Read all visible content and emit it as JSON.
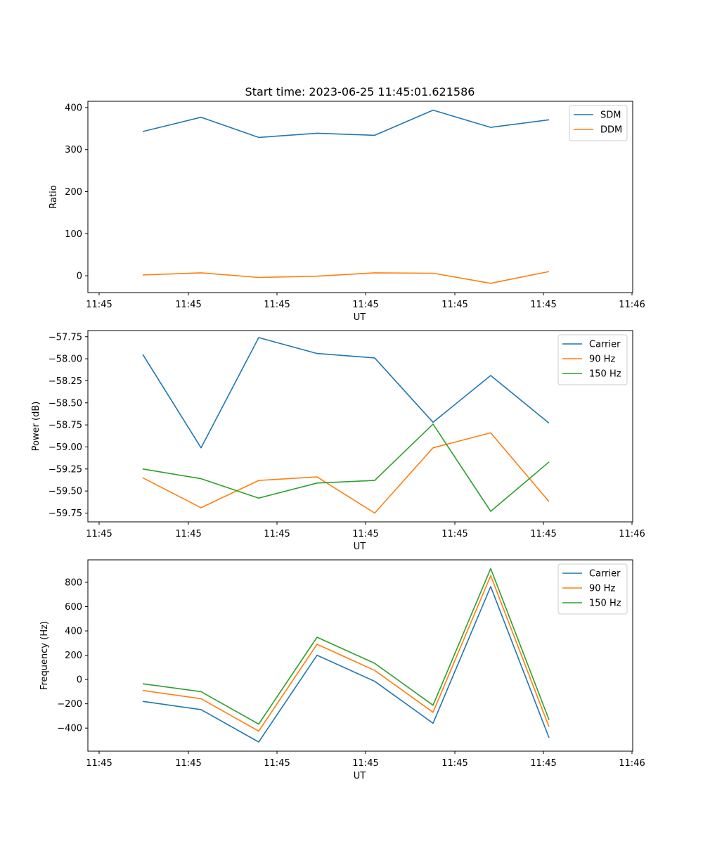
{
  "figure": {
    "title": "Start time: 2023-06-25 11:45:01.621586"
  },
  "chart_data": [
    {
      "type": "line",
      "xlabel": "UT",
      "ylabel": "Ratio",
      "x_tick_labels": [
        "11:45",
        "11:45",
        "11:45",
        "11:45",
        "11:45",
        "11:45",
        "11:46"
      ],
      "y_ticks": [
        0,
        100,
        200,
        300,
        400
      ],
      "y_tick_labels": [
        "0",
        "100",
        "200",
        "300",
        "400"
      ],
      "ylim": [
        -40,
        415
      ],
      "legend_position": "top-right",
      "series": [
        {
          "name": "SDM",
          "color": "#1f77b4",
          "values": [
            343,
            377,
            329,
            339,
            334,
            394,
            353,
            371
          ]
        },
        {
          "name": "DDM",
          "color": "#ff7f0e",
          "values": [
            2,
            7,
            -4,
            -1,
            7,
            6,
            -18,
            10
          ]
        }
      ]
    },
    {
      "type": "line",
      "xlabel": "UT",
      "ylabel": "Power (dB)",
      "x_tick_labels": [
        "11:45",
        "11:45",
        "11:45",
        "11:45",
        "11:45",
        "11:45",
        "11:46"
      ],
      "y_ticks": [
        -57.75,
        -58.0,
        -58.25,
        -58.5,
        -58.75,
        -59.0,
        -59.25,
        -59.5,
        -59.75
      ],
      "y_tick_labels": [
        "−57.75",
        "−58.00",
        "−58.25",
        "−58.50",
        "−58.75",
        "−59.00",
        "−59.25",
        "−59.50",
        "−59.75"
      ],
      "ylim": [
        -59.85,
        -57.68
      ],
      "legend_position": "top-right",
      "series": [
        {
          "name": "Carrier",
          "color": "#1f77b4",
          "values": [
            -57.95,
            -59.01,
            -57.76,
            -57.94,
            -57.99,
            -58.72,
            -58.19,
            -58.73
          ]
        },
        {
          "name": "90 Hz",
          "color": "#ff7f0e",
          "values": [
            -59.35,
            -59.69,
            -59.38,
            -59.34,
            -59.75,
            -59.01,
            -58.84,
            -59.62
          ]
        },
        {
          "name": "150 Hz",
          "color": "#2ca02c",
          "values": [
            -59.25,
            -59.36,
            -59.58,
            -59.41,
            -59.38,
            -58.74,
            -59.73,
            -59.17
          ]
        }
      ]
    },
    {
      "type": "line",
      "xlabel": "UT",
      "ylabel": "Frequency (Hz)",
      "x_tick_labels": [
        "11:45",
        "11:45",
        "11:45",
        "11:45",
        "11:45",
        "11:45",
        "11:46"
      ],
      "y_ticks": [
        800,
        600,
        400,
        200,
        0,
        -200,
        -400
      ],
      "y_tick_labels": [
        "800",
        "600",
        "400",
        "200",
        "0",
        "−200",
        "−400"
      ],
      "ylim": [
        -590,
        985
      ],
      "legend_position": "top-right",
      "series": [
        {
          "name": "Carrier",
          "color": "#1f77b4",
          "values": [
            -180,
            -248,
            -515,
            200,
            -15,
            -360,
            765,
            -480
          ]
        },
        {
          "name": "90 Hz",
          "color": "#ff7f0e",
          "values": [
            -90,
            -158,
            -425,
            290,
            75,
            -270,
            855,
            -390
          ]
        },
        {
          "name": "150 Hz",
          "color": "#2ca02c",
          "values": [
            -35,
            -100,
            -367,
            348,
            133,
            -212,
            913,
            -332
          ]
        }
      ]
    }
  ]
}
